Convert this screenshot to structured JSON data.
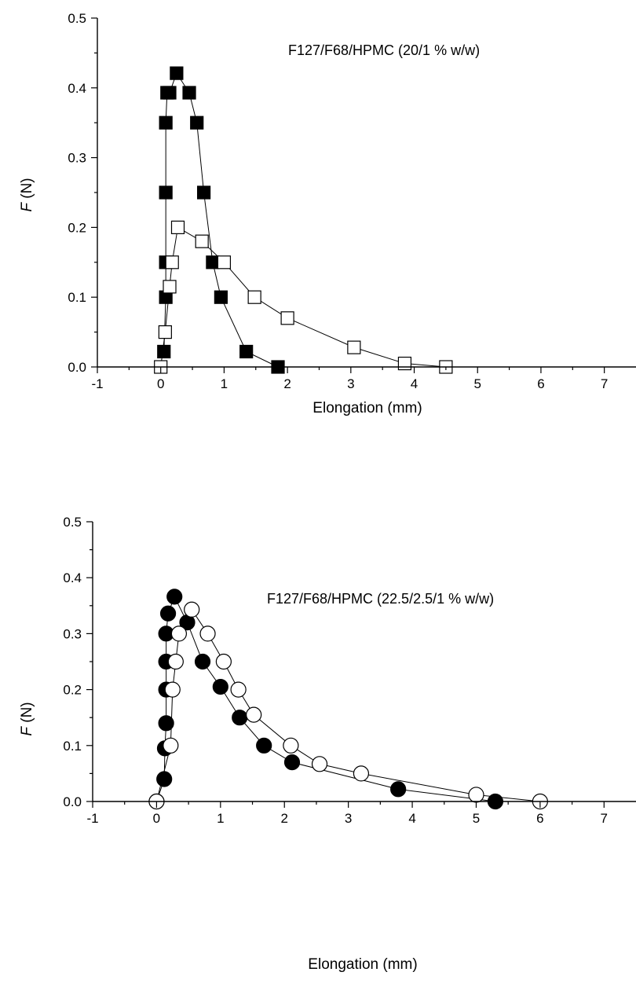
{
  "chart_data": [
    {
      "type": "line",
      "annotation": "F127/F68/HPMC (20/1 % w/w)",
      "xlabel": "Elongation (mm)",
      "ylabel_italic": "F",
      "ylabel_unit": " (N)",
      "xlim": [
        -1,
        7.5
      ],
      "ylim": [
        0,
        0.5
      ],
      "xticks": [
        -1,
        0,
        1,
        2,
        3,
        4,
        5,
        6,
        7
      ],
      "yticks": [
        0.0,
        0.1,
        0.2,
        0.3,
        0.4,
        0.5
      ],
      "xtick_labels": [
        "-1",
        "0",
        "1",
        "2",
        "3",
        "4",
        "5",
        "6",
        "7"
      ],
      "ytick_labels": [
        "0.0",
        "0.1",
        "0.2",
        "0.3",
        "0.4",
        "0.5"
      ],
      "grid": false,
      "series": [
        {
          "marker": "square",
          "fill": "#000000",
          "x": [
            0.05,
            0.08,
            0.08,
            0.08,
            0.08,
            0.1,
            0.14,
            0.25,
            0.45,
            0.57,
            0.68,
            0.82,
            0.95,
            1.35,
            1.85
          ],
          "y": [
            0.022,
            0.1,
            0.15,
            0.25,
            0.35,
            0.393,
            0.393,
            0.421,
            0.393,
            0.35,
            0.25,
            0.15,
            0.1,
            0.022,
            0.0
          ]
        },
        {
          "marker": "square",
          "fill": "#ffffff",
          "x": [
            0.0,
            0.07,
            0.14,
            0.18,
            0.27,
            0.65,
            1.0,
            1.48,
            2.0,
            3.05,
            3.85,
            4.5
          ],
          "y": [
            0.0,
            0.05,
            0.115,
            0.15,
            0.2,
            0.18,
            0.15,
            0.1,
            0.07,
            0.028,
            0.005,
            0.0
          ]
        }
      ]
    },
    {
      "type": "line",
      "annotation": "F127/F68/HPMC (22.5/2.5/1 % w/w)",
      "xlabel": "Elongation (mm)",
      "ylabel_italic": "F",
      "ylabel_unit": " (N)",
      "xlim": [
        -1,
        7.5
      ],
      "ylim": [
        0,
        0.5
      ],
      "xticks": [
        -1,
        0,
        1,
        2,
        3,
        4,
        5,
        6,
        7
      ],
      "yticks": [
        0.0,
        0.1,
        0.2,
        0.3,
        0.4,
        0.5
      ],
      "xtick_labels": [
        "-1",
        "0",
        "1",
        "2",
        "3",
        "4",
        "5",
        "6",
        "7"
      ],
      "ytick_labels": [
        "0.0",
        "0.1",
        "0.2",
        "0.3",
        "0.4",
        "0.5"
      ],
      "grid": false,
      "series": [
        {
          "marker": "circle",
          "fill": "#000000",
          "x": [
            0.0,
            0.12,
            0.13,
            0.15,
            0.15,
            0.15,
            0.15,
            0.18,
            0.28,
            0.48,
            0.72,
            1.0,
            1.3,
            1.68,
            2.12,
            3.78,
            5.3
          ],
          "y": [
            0.0,
            0.04,
            0.095,
            0.14,
            0.2,
            0.25,
            0.3,
            0.336,
            0.366,
            0.32,
            0.25,
            0.205,
            0.15,
            0.1,
            0.07,
            0.022,
            0.0
          ],
          "note": "first point shared with open series origin"
        },
        {
          "marker": "circle",
          "fill": "#ffffff",
          "x": [
            0.0,
            0.22,
            0.25,
            0.3,
            0.35,
            0.55,
            0.8,
            1.05,
            1.28,
            1.52,
            2.1,
            2.55,
            3.2,
            5.0,
            6.0
          ],
          "y": [
            0.0,
            0.1,
            0.2,
            0.25,
            0.3,
            0.343,
            0.3,
            0.25,
            0.2,
            0.155,
            0.1,
            0.067,
            0.05,
            0.012,
            0.0
          ]
        }
      ]
    }
  ]
}
